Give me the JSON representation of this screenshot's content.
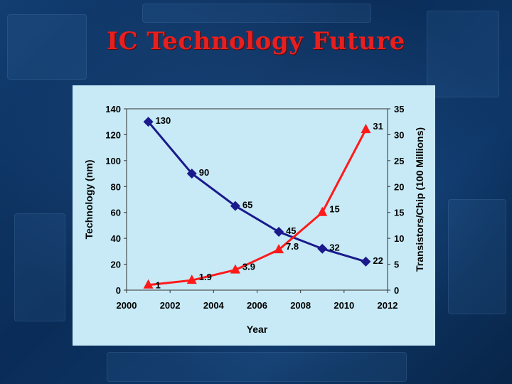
{
  "slide": {
    "title": "IC Technology Future"
  },
  "chart_data": {
    "type": "line",
    "x": [
      2001,
      2003,
      2005,
      2007,
      2009,
      2011
    ],
    "xlabel": "Year",
    "xlim": [
      2000,
      2012
    ],
    "xticks": [
      "2000",
      "2002",
      "2004",
      "2006",
      "2008",
      "2010",
      "2012"
    ],
    "ylabel": "Technology (nm)",
    "ylim": [
      0,
      140
    ],
    "yticks": [
      "0",
      "20",
      "40",
      "60",
      "80",
      "100",
      "120",
      "140"
    ],
    "y2label": "Transistors/Chip (100 Millions)",
    "y2lim": [
      0,
      35
    ],
    "y2ticks": [
      "0",
      "5",
      "10",
      "15",
      "20",
      "25",
      "30",
      "35"
    ],
    "grid": false,
    "series": [
      {
        "axis": "left",
        "marker": "diamond",
        "color": "#1a1a8c",
        "values": [
          130,
          90,
          65,
          45,
          32,
          22
        ],
        "labels": [
          "130",
          "90",
          "65",
          "45",
          "32",
          "22"
        ]
      },
      {
        "axis": "right",
        "marker": "triangle",
        "color": "#ff1a1a",
        "values": [
          1,
          1.9,
          3.9,
          7.8,
          15,
          31
        ],
        "labels": [
          "1",
          "1.9",
          "3.9",
          "7.8",
          "15",
          "31"
        ]
      }
    ]
  }
}
